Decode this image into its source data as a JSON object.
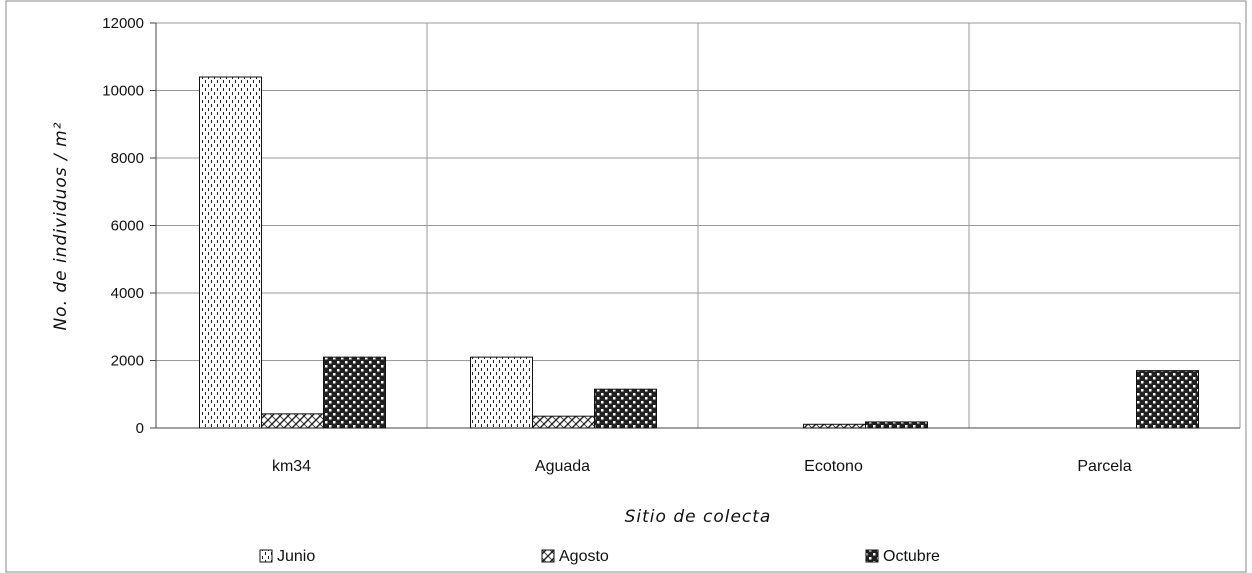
{
  "chart_data": {
    "type": "bar",
    "categories": [
      "km34",
      "Aguada",
      "Ecotono",
      "Parcela"
    ],
    "series": [
      {
        "name": "Junio",
        "values": [
          10400,
          2100,
          0,
          0
        ],
        "pattern": "dashes"
      },
      {
        "name": "Agosto",
        "values": [
          420,
          350,
          110,
          0
        ],
        "pattern": "diagonal"
      },
      {
        "name": "Octubre",
        "values": [
          2100,
          1150,
          180,
          1700
        ],
        "pattern": "checker"
      }
    ],
    "title": "",
    "xlabel": "Sitio de colecta",
    "ylabel": "No. de individuos / m²",
    "ylim": [
      0,
      12000
    ],
    "yticks": [
      0,
      2000,
      4000,
      6000,
      8000,
      10000,
      12000
    ],
    "grid": true,
    "legend_position": "bottom"
  }
}
